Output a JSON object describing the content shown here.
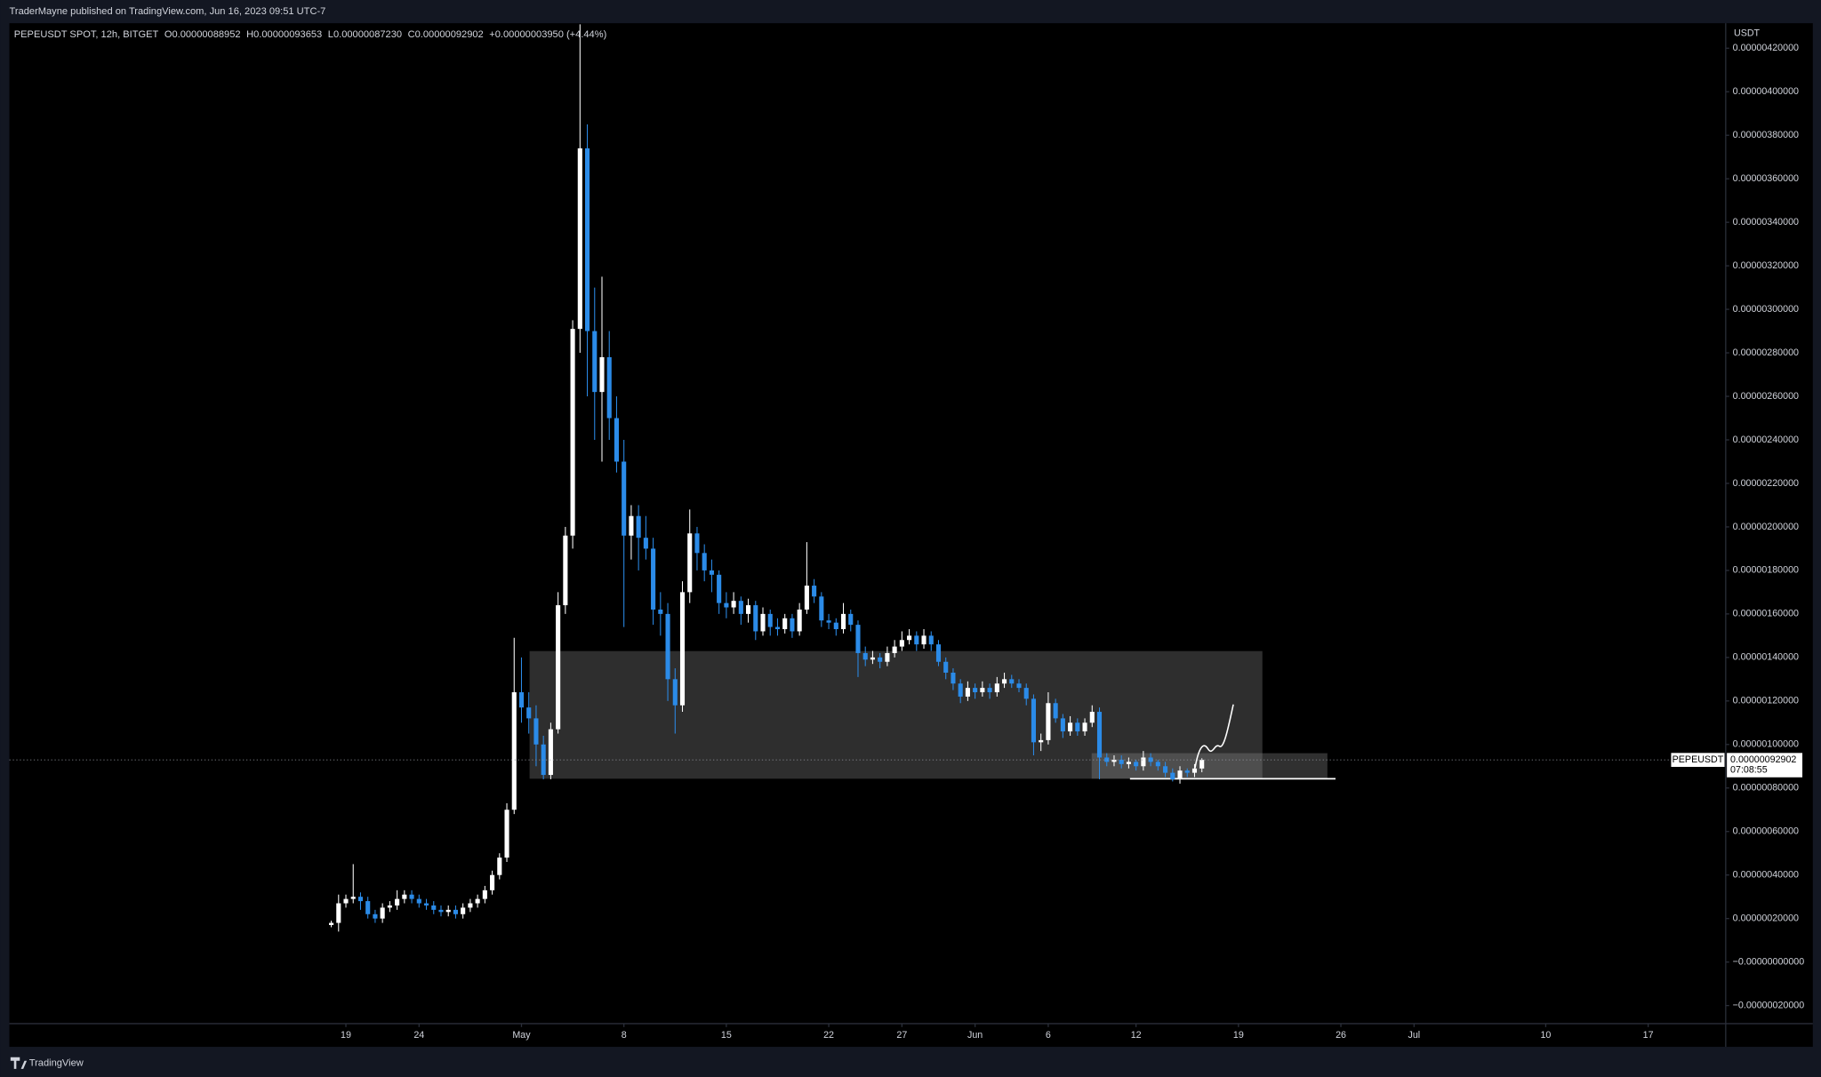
{
  "header": {
    "published": "TraderMayne published on TradingView.com, Jun 16, 2023 09:51 UTC-7",
    "brand": "TradingView"
  },
  "chart_data": {
    "type": "candlestick",
    "legend": [
      "PEPEUSDT SPOT, 12h, BITGET",
      "O0.00000088952",
      "H0.00000093653",
      "L0.00000087230",
      "C0.00000092902",
      "+0.00000003950 (+4.44%)"
    ],
    "currency": "USDT",
    "symbol": "PEPEUSDT",
    "last_price_label": "0.00000092902",
    "countdown": "07:08:55",
    "up_color": "#ffffff",
    "down_color": "#2b8be8",
    "xlim": [
      -22,
      95.3
    ],
    "xticks": [
      {
        "value": 1,
        "label": "19"
      },
      {
        "value": 6,
        "label": "24"
      },
      {
        "value": 13,
        "label": "May"
      },
      {
        "value": 20,
        "label": "8"
      },
      {
        "value": 27,
        "label": "15"
      },
      {
        "value": 34,
        "label": "22"
      },
      {
        "value": 39,
        "label": "27"
      },
      {
        "value": 44,
        "label": "Jun"
      },
      {
        "value": 49,
        "label": "6"
      },
      {
        "value": 55,
        "label": "12"
      },
      {
        "value": 62,
        "label": "19"
      },
      {
        "value": 69,
        "label": "26"
      },
      {
        "value": 74,
        "label": "Jul"
      },
      {
        "value": 83,
        "label": "10"
      },
      {
        "value": 90,
        "label": "17"
      }
    ],
    "ylim": [
      -2.83e-07,
      4.315e-06
    ],
    "yticks": [
      {
        "value": -2e-07,
        "label": "−0.00000020000"
      },
      {
        "value": 0,
        "label": "−0.00000000000"
      },
      {
        "value": 2e-07,
        "label": "0.00000020000"
      },
      {
        "value": 4e-07,
        "label": "0.00000040000"
      },
      {
        "value": 6e-07,
        "label": "0.00000060000"
      },
      {
        "value": 8e-07,
        "label": "0.00000080000"
      },
      {
        "value": 1e-06,
        "label": "0.00000100000"
      },
      {
        "value": 1.2e-06,
        "label": "0.00000120000"
      },
      {
        "value": 1.4e-06,
        "label": "0.00000140000"
      },
      {
        "value": 1.6e-06,
        "label": "0.00000160000"
      },
      {
        "value": 1.8e-06,
        "label": "0.00000180000"
      },
      {
        "value": 2e-06,
        "label": "0.00000200000"
      },
      {
        "value": 2.2e-06,
        "label": "0.00000220000"
      },
      {
        "value": 2.4e-06,
        "label": "0.00000240000"
      },
      {
        "value": 2.6e-06,
        "label": "0.00000260000"
      },
      {
        "value": 2.8e-06,
        "label": "0.00000280000"
      },
      {
        "value": 3e-06,
        "label": "0.00000300000"
      },
      {
        "value": 3.2e-06,
        "label": "0.00000320000"
      },
      {
        "value": 3.4e-06,
        "label": "0.00000340000"
      },
      {
        "value": 3.6e-06,
        "label": "0.00000360000"
      },
      {
        "value": 3.8e-06,
        "label": "0.00000380000"
      },
      {
        "value": 4e-06,
        "label": "0.00000400000"
      },
      {
        "value": 4.2e-06,
        "label": "0.00000420000"
      }
    ],
    "x": [
      0,
      0.5,
      1,
      1.5,
      2,
      2.5,
      3,
      3.5,
      4,
      4.5,
      5,
      5.5,
      6,
      6.5,
      7,
      7.5,
      8,
      8.5,
      9,
      9.5,
      10,
      10.5,
      11,
      11.5,
      12,
      12.5,
      13,
      13.5,
      14,
      14.5,
      15,
      15.5,
      16,
      16.5,
      17,
      17.5,
      18,
      18.5,
      19,
      19.5,
      20,
      20.5,
      21,
      21.5,
      22,
      22.5,
      23,
      23.5,
      24,
      24.5,
      25,
      25.5,
      26,
      26.5,
      27,
      27.5,
      28,
      28.5,
      29,
      29.5,
      30,
      30.5,
      31,
      31.5,
      32,
      32.5,
      33,
      33.5,
      34,
      34.5,
      35,
      35.5,
      36,
      36.5,
      37,
      37.5,
      38,
      38.5,
      39,
      39.5,
      40,
      40.5,
      41,
      41.5,
      42,
      42.5,
      43,
      43.5,
      44,
      44.5,
      45,
      45.5,
      46,
      46.5,
      47,
      47.5,
      48,
      48.5,
      49,
      49.5,
      50,
      50.5,
      51,
      51.5,
      52,
      52.5,
      53,
      53.5,
      54,
      54.5,
      55,
      55.5,
      56,
      56.5,
      57,
      57.5,
      58,
      58.5,
      59,
      59.5
    ],
    "ohlc": [
      [
        1.7e-07,
        1.9e-07,
        1.6e-07,
        1.8e-07
      ],
      [
        1.8e-07,
        3.1e-07,
        1.4e-07,
        2.7e-07
      ],
      [
        2.7e-07,
        3.1e-07,
        2.5e-07,
        2.9e-07
      ],
      [
        2.9e-07,
        4.5e-07,
        2.7e-07,
        3e-07
      ],
      [
        3e-07,
        3.2e-07,
        2.4e-07,
        2.8e-07
      ],
      [
        2.8e-07,
        3e-07,
        2e-07,
        2.2e-07
      ],
      [
        2.2e-07,
        2.4e-07,
        1.8e-07,
        2e-07
      ],
      [
        2e-07,
        2.7e-07,
        1.8e-07,
        2.5e-07
      ],
      [
        2.5e-07,
        2.8e-07,
        2.3e-07,
        2.6e-07
      ],
      [
        2.6e-07,
        3.3e-07,
        2.4e-07,
        2.9e-07
      ],
      [
        2.9e-07,
        3.3e-07,
        2.7e-07,
        3.1e-07
      ],
      [
        3.1e-07,
        3.3e-07,
        2.7e-07,
        2.9e-07
      ],
      [
        2.9e-07,
        3.1e-07,
        2.5e-07,
        2.7e-07
      ],
      [
        2.7e-07,
        2.9e-07,
        2.4e-07,
        2.6e-07
      ],
      [
        2.6e-07,
        2.8e-07,
        2.2e-07,
        2.4e-07
      ],
      [
        2.4e-07,
        2.6e-07,
        2.1e-07,
        2.3e-07
      ],
      [
        2.3e-07,
        2.6e-07,
        2.1e-07,
        2.4e-07
      ],
      [
        2.4e-07,
        2.6e-07,
        2e-07,
        2.2e-07
      ],
      [
        2.2e-07,
        2.7e-07,
        2e-07,
        2.5e-07
      ],
      [
        2.5e-07,
        2.9e-07,
        2.3e-07,
        2.7e-07
      ],
      [
        2.7e-07,
        3.1e-07,
        2.5e-07,
        2.9e-07
      ],
      [
        2.9e-07,
        3.5e-07,
        2.7e-07,
        3.3e-07
      ],
      [
        3.3e-07,
        4.2e-07,
        3.1e-07,
        4e-07
      ],
      [
        4e-07,
        5e-07,
        3.8e-07,
        4.8e-07
      ],
      [
        4.8e-07,
        7.3e-07,
        4.6e-07,
        7e-07
      ],
      [
        7e-07,
        1.49e-06,
        6.8e-07,
        1.24e-06
      ],
      [
        1.24e-06,
        1.4e-06,
        1.1e-06,
        1.17e-06
      ],
      [
        1.17e-06,
        1.24e-06,
        1.05e-06,
        1.12e-06
      ],
      [
        1.12e-06,
        1.18e-06,
        9e-07,
        1e-06
      ],
      [
        1e-06,
        1.04e-06,
        8.4e-07,
        8.6e-07
      ],
      [
        8.6e-07,
        1.1e-06,
        8.4e-07,
        1.07e-06
      ],
      [
        1.07e-06,
        1.7e-06,
        1.05e-06,
        1.64e-06
      ],
      [
        1.64e-06,
        2e-06,
        1.6e-06,
        1.96e-06
      ],
      [
        1.96e-06,
        2.95e-06,
        1.9e-06,
        2.91e-06
      ],
      [
        2.91e-06,
        4.31e-06,
        2.8e-06,
        3.74e-06
      ],
      [
        3.74e-06,
        3.85e-06,
        2.6e-06,
        2.9e-06
      ],
      [
        2.9e-06,
        3.1e-06,
        2.4e-06,
        2.62e-06
      ],
      [
        2.62e-06,
        3.15e-06,
        2.3e-06,
        2.78e-06
      ],
      [
        2.78e-06,
        2.9e-06,
        2.4e-06,
        2.5e-06
      ],
      [
        2.5e-06,
        2.6e-06,
        2.25e-06,
        2.3e-06
      ],
      [
        2.3e-06,
        2.4e-06,
        1.54e-06,
        1.96e-06
      ],
      [
        1.96e-06,
        2.1e-06,
        1.85e-06,
        2.05e-06
      ],
      [
        2.05e-06,
        2.1e-06,
        1.8e-06,
        1.95e-06
      ],
      [
        1.95e-06,
        2.05e-06,
        1.85e-06,
        1.9e-06
      ],
      [
        1.9e-06,
        1.95e-06,
        1.55e-06,
        1.62e-06
      ],
      [
        1.62e-06,
        1.7e-06,
        1.5e-06,
        1.6e-06
      ],
      [
        1.6e-06,
        1.65e-06,
        1.2e-06,
        1.3e-06
      ],
      [
        1.3e-06,
        1.35e-06,
        1.05e-06,
        1.18e-06
      ],
      [
        1.18e-06,
        1.75e-06,
        1.15e-06,
        1.7e-06
      ],
      [
        1.7e-06,
        2.08e-06,
        1.65e-06,
        1.97e-06
      ],
      [
        1.97e-06,
        2e-06,
        1.8e-06,
        1.88e-06
      ],
      [
        1.88e-06,
        1.92e-06,
        1.75e-06,
        1.8e-06
      ],
      [
        1.8e-06,
        1.85e-06,
        1.7e-06,
        1.78e-06
      ],
      [
        1.78e-06,
        1.8e-06,
        1.6e-06,
        1.65e-06
      ],
      [
        1.65e-06,
        1.7e-06,
        1.58e-06,
        1.63e-06
      ],
      [
        1.63e-06,
        1.7e-06,
        1.6e-06,
        1.66e-06
      ],
      [
        1.66e-06,
        1.68e-06,
        1.55e-06,
        1.6e-06
      ],
      [
        1.6e-06,
        1.67e-06,
        1.56e-06,
        1.64e-06
      ],
      [
        1.64e-06,
        1.66e-06,
        1.48e-06,
        1.52e-06
      ],
      [
        1.52e-06,
        1.63e-06,
        1.5e-06,
        1.6e-06
      ],
      [
        1.6e-06,
        1.62e-06,
        1.5e-06,
        1.54e-06
      ],
      [
        1.54e-06,
        1.58e-06,
        1.5e-06,
        1.53e-06
      ],
      [
        1.53e-06,
        1.6e-06,
        1.51e-06,
        1.58e-06
      ],
      [
        1.58e-06,
        1.6e-06,
        1.49e-06,
        1.52e-06
      ],
      [
        1.52e-06,
        1.65e-06,
        1.5e-06,
        1.62e-06
      ],
      [
        1.62e-06,
        1.93e-06,
        1.6e-06,
        1.73e-06
      ],
      [
        1.73e-06,
        1.76e-06,
        1.65e-06,
        1.68e-06
      ],
      [
        1.68e-06,
        1.7e-06,
        1.54e-06,
        1.57e-06
      ],
      [
        1.57e-06,
        1.6e-06,
        1.53e-06,
        1.56e-06
      ],
      [
        1.56e-06,
        1.58e-06,
        1.5e-06,
        1.53e-06
      ],
      [
        1.53e-06,
        1.65e-06,
        1.51e-06,
        1.6e-06
      ],
      [
        1.6e-06,
        1.62e-06,
        1.52e-06,
        1.55e-06
      ],
      [
        1.55e-06,
        1.57e-06,
        1.31e-06,
        1.42e-06
      ],
      [
        1.42e-06,
        1.45e-06,
        1.36e-06,
        1.39e-06
      ],
      [
        1.39e-06,
        1.43e-06,
        1.37e-06,
        1.4e-06
      ],
      [
        1.4e-06,
        1.42e-06,
        1.35e-06,
        1.38e-06
      ],
      [
        1.38e-06,
        1.45e-06,
        1.36e-06,
        1.42e-06
      ],
      [
        1.42e-06,
        1.48e-06,
        1.4e-06,
        1.45e-06
      ],
      [
        1.45e-06,
        1.52e-06,
        1.43e-06,
        1.48e-06
      ],
      [
        1.48e-06,
        1.53e-06,
        1.46e-06,
        1.5e-06
      ],
      [
        1.5e-06,
        1.52e-06,
        1.43e-06,
        1.46e-06
      ],
      [
        1.46e-06,
        1.53e-06,
        1.44e-06,
        1.5e-06
      ],
      [
        1.5e-06,
        1.52e-06,
        1.43e-06,
        1.46e-06
      ],
      [
        1.46e-06,
        1.48e-06,
        1.36e-06,
        1.38e-06
      ],
      [
        1.38e-06,
        1.4e-06,
        1.3e-06,
        1.33e-06
      ],
      [
        1.33e-06,
        1.35e-06,
        1.25e-06,
        1.28e-06
      ],
      [
        1.28e-06,
        1.3e-06,
        1.19e-06,
        1.22e-06
      ],
      [
        1.22e-06,
        1.29e-06,
        1.2e-06,
        1.26e-06
      ],
      [
        1.26e-06,
        1.28e-06,
        1.21e-06,
        1.24e-06
      ],
      [
        1.24e-06,
        1.29e-06,
        1.22e-06,
        1.26e-06
      ],
      [
        1.26e-06,
        1.28e-06,
        1.21e-06,
        1.24e-06
      ],
      [
        1.24e-06,
        1.31e-06,
        1.22e-06,
        1.28e-06
      ],
      [
        1.28e-06,
        1.33e-06,
        1.26e-06,
        1.3e-06
      ],
      [
        1.3e-06,
        1.32e-06,
        1.26e-06,
        1.28e-06
      ],
      [
        1.28e-06,
        1.3e-06,
        1.24e-06,
        1.26e-06
      ],
      [
        1.26e-06,
        1.28e-06,
        1.18e-06,
        1.21e-06
      ],
      [
        1.21e-06,
        1.23e-06,
        9.5e-07,
        1.01e-06
      ],
      [
        1.01e-06,
        1.05e-06,
        9.7e-07,
        1.02e-06
      ],
      [
        1.02e-06,
        1.24e-06,
        1e-06,
        1.19e-06
      ],
      [
        1.19e-06,
        1.21e-06,
        1.1e-06,
        1.12e-06
      ],
      [
        1.12e-06,
        1.14e-06,
        1.03e-06,
        1.06e-06
      ],
      [
        1.06e-06,
        1.13e-06,
        1.04e-06,
        1.1e-06
      ],
      [
        1.1e-06,
        1.12e-06,
        1.04e-06,
        1.06e-06
      ],
      [
        1.06e-06,
        1.12e-06,
        1.04e-06,
        1.1e-06
      ],
      [
        1.1e-06,
        1.18e-06,
        1.08e-06,
        1.15e-06
      ],
      [
        1.15e-06,
        1.17e-06,
        8.4e-07,
        9.4e-07
      ],
      [
        9.4e-07,
        9.6e-07,
        9e-07,
        9.2e-07
      ],
      [
        9.2e-07,
        9.5e-07,
        9e-07,
        9.3e-07
      ],
      [
        9.3e-07,
        9.5e-07,
        8.9e-07,
        9.1e-07
      ],
      [
        9.1e-07,
        9.4e-07,
        8.9e-07,
        9.2e-07
      ],
      [
        9.2e-07,
        9.3e-07,
        8.8e-07,
        9e-07
      ],
      [
        9e-07,
        9.7e-07,
        8.8e-07,
        9.4e-07
      ],
      [
        9.4e-07,
        9.6e-07,
        9e-07,
        9.2e-07
      ],
      [
        9.2e-07,
        9.3e-07,
        8.8e-07,
        9e-07
      ],
      [
        9e-07,
        9.2e-07,
        8.5e-07,
        8.7e-07
      ],
      [
        8.7e-07,
        8.9e-07,
        8.3e-07,
        8.4e-07
      ],
      [
        8.4e-07,
        9e-07,
        8.2e-07,
        8.8e-07
      ],
      [
        8.8e-07,
        8.9e-07,
        8.5e-07,
        8.7e-07
      ],
      [
        8.7e-07,
        9.1e-07,
        8.5e-07,
        8.8952e-07
      ],
      [
        8.8952e-07,
        9.3653e-07,
        8.723e-07,
        9.2902e-07
      ]
    ]
  }
}
